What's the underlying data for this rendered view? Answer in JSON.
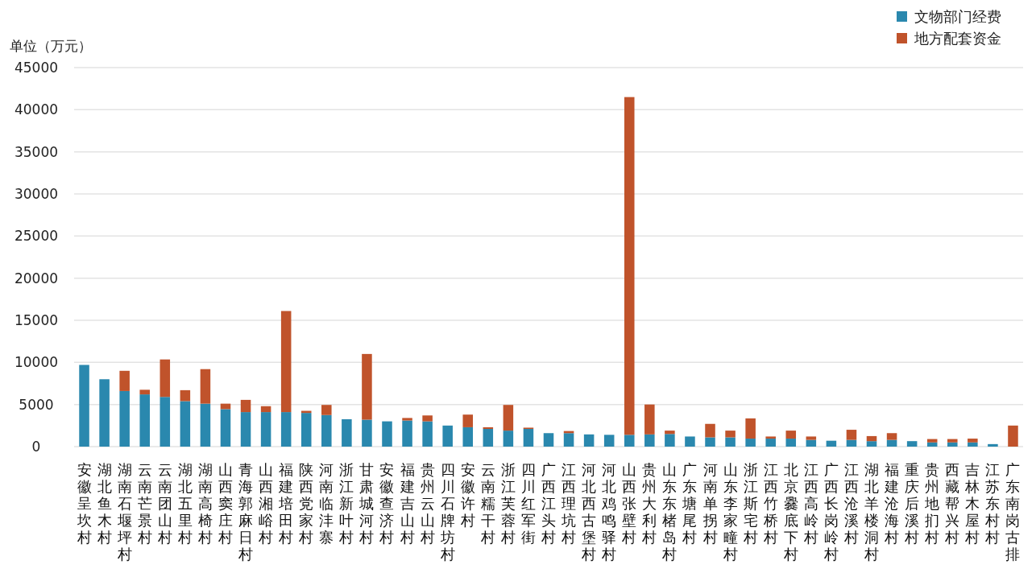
{
  "chart_data": {
    "type": "bar",
    "stacked": true,
    "ylabel": "单位（万元）",
    "categories": [
      "安徽呈坎村",
      "湖北鱼木村",
      "湖南石堰坪村",
      "云南芒景村",
      "云南团山村",
      "湖北五里村",
      "湖南高椅村",
      "山西窦庄村",
      "青海郭麻日村",
      "山西湘峪村",
      "福建培田村",
      "陕西党家村",
      "河南临沣寨",
      "浙江新叶村",
      "甘肃城河村",
      "安徽查济村",
      "福建吉山村",
      "贵州云山村",
      "四川石牌坊村",
      "安徽许村",
      "云南糯干村",
      "浙江芙蓉村",
      "四川红军街",
      "广西江头村",
      "江西理坑村",
      "河北西古堡村",
      "河北鸡鸣驿村",
      "山西张壁村",
      "贵州大利村",
      "山东东楮岛村",
      "广东塘尾村",
      "河南单拐村",
      "山东李家疃村",
      "浙江斯宅村",
      "江西竹桥村",
      "北京爨底下村",
      "江西高岭村",
      "广西长岗岭村",
      "江西沧溪村",
      "湖北羊楼洞村",
      "福建沧海村",
      "重庆后溪村",
      "贵州地扪村",
      "西藏帮兴村",
      "吉林木屋村",
      "江苏东村村",
      "广东南岗古排"
    ],
    "series": [
      {
        "name": "文物部门经费",
        "color": "#2a88ae",
        "values": [
          9700,
          8000,
          6600,
          6200,
          5900,
          5400,
          5100,
          4450,
          4100,
          4100,
          4100,
          4000,
          3750,
          3250,
          3200,
          3000,
          3100,
          3000,
          2500,
          2300,
          2100,
          1900,
          2100,
          1600,
          1600,
          1450,
          1400,
          1400,
          1450,
          1500,
          1200,
          1100,
          1100,
          950,
          950,
          950,
          800,
          700,
          800,
          650,
          800,
          650,
          500,
          500,
          500,
          300,
          0
        ]
      },
      {
        "name": "地方配套资金",
        "color": "#c0532b",
        "values": [
          0,
          0,
          2400,
          550,
          4450,
          1300,
          4100,
          650,
          1450,
          700,
          12000,
          250,
          1200,
          0,
          7800,
          0,
          300,
          700,
          0,
          1500,
          200,
          3050,
          150,
          0,
          250,
          0,
          0,
          40100,
          3550,
          400,
          0,
          1600,
          800,
          2400,
          250,
          950,
          400,
          0,
          1200,
          600,
          800,
          0,
          400,
          400,
          450,
          0,
          2500
        ]
      }
    ],
    "ylim": [
      0,
      45000
    ],
    "yticks": [
      0,
      5000,
      10000,
      15000,
      20000,
      25000,
      30000,
      35000,
      40000,
      45000
    ],
    "grid": "y",
    "legend": "top right"
  }
}
